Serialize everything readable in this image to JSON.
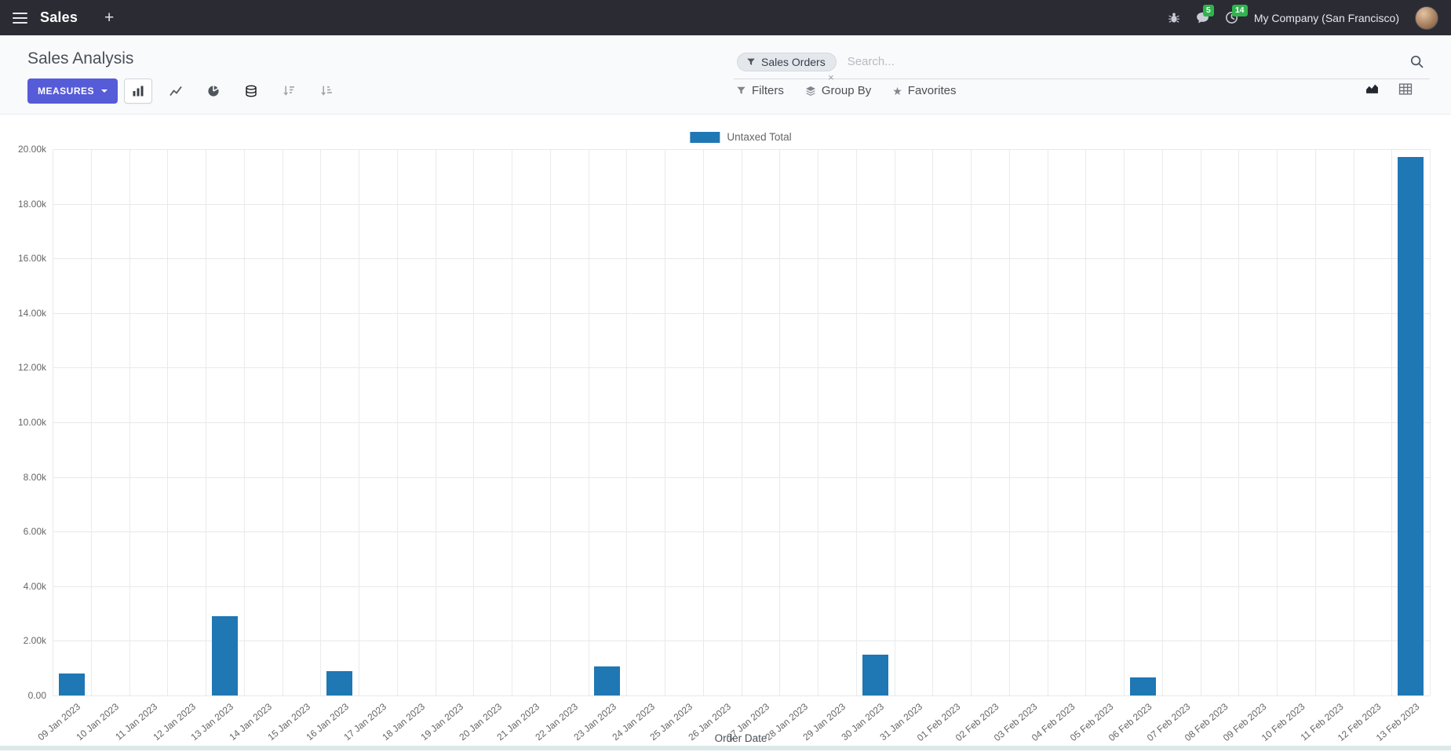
{
  "colors": {
    "navbar_bg": "#2a2b33",
    "primary": "#565bd8",
    "badge": "#30b44d",
    "bar": "#1f77b4"
  },
  "navbar": {
    "app_name": "Sales",
    "plus": "+",
    "message_badge": "5",
    "activity_badge": "14",
    "company": "My Company (San Francisco)"
  },
  "control_panel": {
    "title": "Sales Analysis",
    "measures_label": "MEASURES",
    "filters_label": "Filters",
    "group_by_label": "Group By",
    "favorites_label": "Favorites",
    "search": {
      "facet_label": "Sales Orders",
      "placeholder": "Search...",
      "remove_symbol": "×"
    }
  },
  "chart_data": {
    "type": "bar",
    "title": "",
    "legend": [
      {
        "label": "Untaxed Total",
        "color": "#1f77b4"
      }
    ],
    "legend_position": "top",
    "grid": true,
    "xlabel": "Order Date",
    "ylabel": "",
    "ylim": [
      0,
      20000
    ],
    "y_ticks": [
      "0.00",
      "2.00k",
      "4.00k",
      "6.00k",
      "8.00k",
      "10.00k",
      "12.00k",
      "14.00k",
      "16.00k",
      "18.00k",
      "20.00k"
    ],
    "categories": [
      "09 Jan 2023",
      "10 Jan 2023",
      "11 Jan 2023",
      "12 Jan 2023",
      "13 Jan 2023",
      "14 Jan 2023",
      "15 Jan 2023",
      "16 Jan 2023",
      "17 Jan 2023",
      "18 Jan 2023",
      "19 Jan 2023",
      "20 Jan 2023",
      "21 Jan 2023",
      "22 Jan 2023",
      "23 Jan 2023",
      "24 Jan 2023",
      "25 Jan 2023",
      "26 Jan 2023",
      "27 Jan 2023",
      "28 Jan 2023",
      "29 Jan 2023",
      "30 Jan 2023",
      "31 Jan 2023",
      "01 Feb 2023",
      "02 Feb 2023",
      "03 Feb 2023",
      "04 Feb 2023",
      "05 Feb 2023",
      "06 Feb 2023",
      "07 Feb 2023",
      "08 Feb 2023",
      "09 Feb 2023",
      "10 Feb 2023",
      "11 Feb 2023",
      "12 Feb 2023",
      "13 Feb 2023"
    ],
    "values": [
      800,
      0,
      0,
      0,
      2900,
      0,
      0,
      900,
      0,
      0,
      0,
      0,
      0,
      0,
      1050,
      0,
      0,
      0,
      0,
      0,
      0,
      1500,
      0,
      0,
      0,
      0,
      0,
      0,
      650,
      0,
      0,
      0,
      0,
      0,
      0,
      19700
    ]
  }
}
